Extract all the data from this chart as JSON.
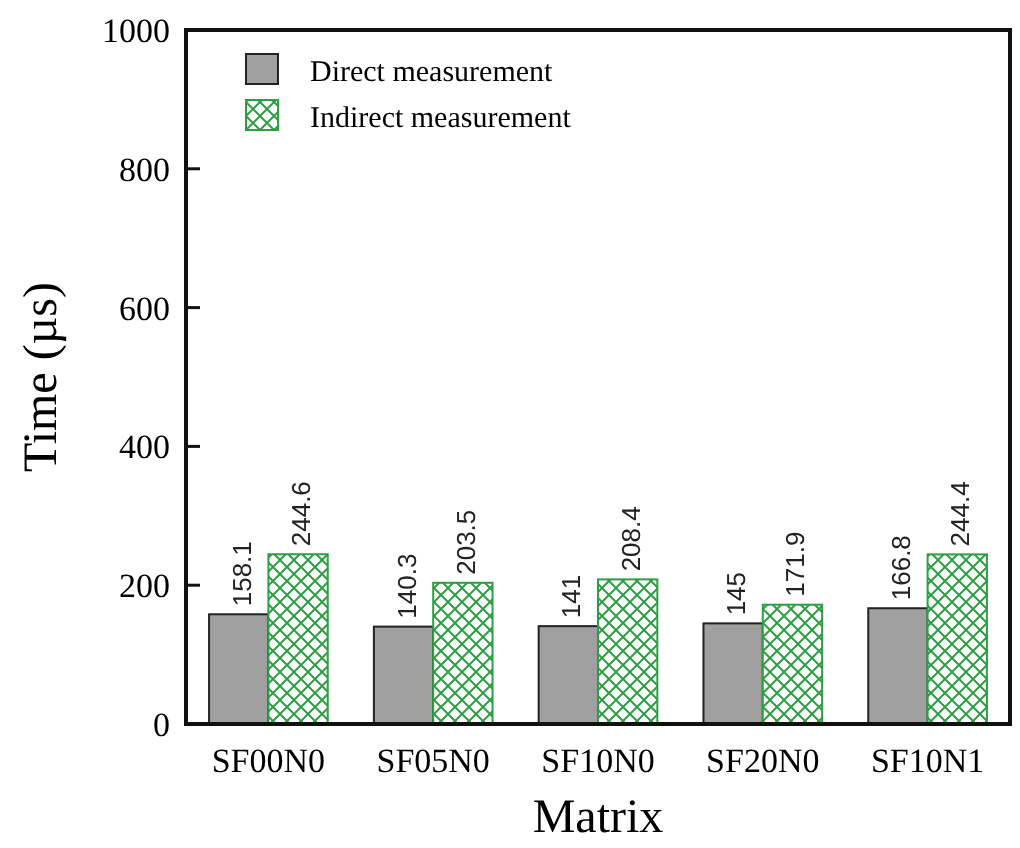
{
  "chart_data": {
    "type": "bar",
    "xlabel": "Matrix",
    "ylabel": "Time (µs)",
    "categories": [
      "SF00N0",
      "SF05N0",
      "SF10N0",
      "SF20N0",
      "SF10N1"
    ],
    "series": [
      {
        "name": "Direct measurement",
        "color": "#a0a0a0",
        "values": [
          158.1,
          140.3,
          141,
          145,
          166.8
        ]
      },
      {
        "name": "Indirect measurement",
        "color": "#2e9e44",
        "values": [
          244.6,
          203.5,
          208.4,
          171.9,
          244.4
        ]
      }
    ],
    "ylim": [
      0,
      1000
    ],
    "yticks": [
      0,
      200,
      400,
      600,
      800,
      1000
    ],
    "data_labels": true,
    "legend": "top left",
    "grid": false
  }
}
